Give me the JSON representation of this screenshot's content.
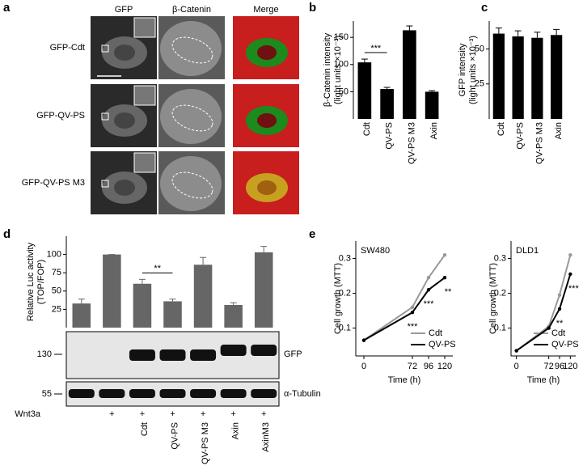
{
  "panel_labels": [
    "a",
    "b",
    "c",
    "d",
    "e"
  ],
  "panel_a": {
    "columns": [
      "GFP",
      "β-Catenin",
      "Merge"
    ],
    "rows": [
      "GFP-Cdt",
      "GFP-QV-PS",
      "GFP-QV-PS M3"
    ]
  },
  "blot": {
    "bands": [
      "GFP",
      "α-Tubulin"
    ],
    "markers": [
      130,
      55
    ],
    "treatment_label": "Wnt3a",
    "treatment": [
      null,
      "+",
      "+",
      "+",
      "+",
      "+",
      "+"
    ]
  },
  "chart_data": [
    {
      "type": "bar",
      "ylabel": [
        "β-Catenin intensity",
        "(light units ×10⁻³)"
      ],
      "categories": [
        "Cdt",
        "QV-PS",
        "QV-PS M3",
        "Axin"
      ],
      "values": [
        104,
        55,
        163,
        50
      ],
      "errors": [
        6,
        3,
        8,
        2
      ],
      "color": "#000000",
      "ylim": [
        0,
        180
      ],
      "yticks": [
        50,
        100,
        150
      ],
      "annotation": "***",
      "grid": false
    },
    {
      "type": "bar",
      "ylabel": [
        "GFP intensity",
        "(light units ×10⁻³)"
      ],
      "categories": [
        "Cdt",
        "QV-PS",
        "QV-PS M3",
        "Axin"
      ],
      "values": [
        61,
        59,
        58,
        60
      ],
      "errors": [
        4,
        4,
        4,
        4
      ],
      "color": "#000000",
      "ylim": [
        0,
        70
      ],
      "yticks": [
        25,
        50
      ],
      "grid": false
    },
    {
      "type": "bar",
      "ylabel": [
        "Relative Luc activity",
        "(TOP/FOP)"
      ],
      "categories": [
        null,
        null,
        "Cdt",
        "QV-PS",
        "QV-PS M3",
        "Axin",
        "AxinM3"
      ],
      "values": [
        33,
        100,
        60,
        36,
        86,
        31,
        103
      ],
      "errors": [
        6,
        0,
        6,
        3,
        10,
        3,
        8
      ],
      "color": "#666666",
      "ylim": [
        0,
        125
      ],
      "yticks": [
        25,
        50,
        75,
        100
      ],
      "annotation": "**",
      "grid": false
    },
    {
      "type": "line",
      "title": "SW480",
      "ylabel": [
        "Cell growth (MTT)"
      ],
      "xlabel": "Time (h)",
      "x": [
        0,
        72,
        96,
        120
      ],
      "xlim": [
        -12,
        132
      ],
      "xticks": [
        0,
        72,
        96,
        120
      ],
      "ylim": [
        0.02,
        0.35
      ],
      "yticks": [
        0.1,
        0.2,
        0.3
      ],
      "series": [
        {
          "name": "Cdt",
          "color": "#999999",
          "values": [
            0.065,
            0.16,
            0.245,
            0.31
          ]
        },
        {
          "name": "QV-PS",
          "color": "#000000",
          "values": [
            0.065,
            0.145,
            0.21,
            0.245
          ]
        }
      ],
      "annotations": [
        {
          "text": "***",
          "x": 72
        },
        {
          "text": "***",
          "x": 96
        },
        {
          "text": "**",
          "x": 120
        }
      ],
      "legend": "lower right"
    },
    {
      "type": "line",
      "title": "DLD1",
      "ylabel": [
        "Cell growth (MTT)"
      ],
      "xlabel": "Time (h)",
      "x": [
        0,
        72,
        96,
        120
      ],
      "xlim": [
        -12,
        132
      ],
      "xticks": [
        0,
        72,
        96,
        120
      ],
      "ylim": [
        0.02,
        0.35
      ],
      "yticks": [
        0.1,
        0.2,
        0.3
      ],
      "series": [
        {
          "name": "Cdt",
          "color": "#999999",
          "values": [
            0.035,
            0.105,
            0.195,
            0.31
          ]
        },
        {
          "name": "QV-PS",
          "color": "#000000",
          "values": [
            0.035,
            0.1,
            0.155,
            0.255
          ]
        }
      ],
      "annotations": [
        {
          "text": "**",
          "x": 96
        },
        {
          "text": "***",
          "x": 120
        }
      ],
      "legend": "lower right"
    }
  ]
}
